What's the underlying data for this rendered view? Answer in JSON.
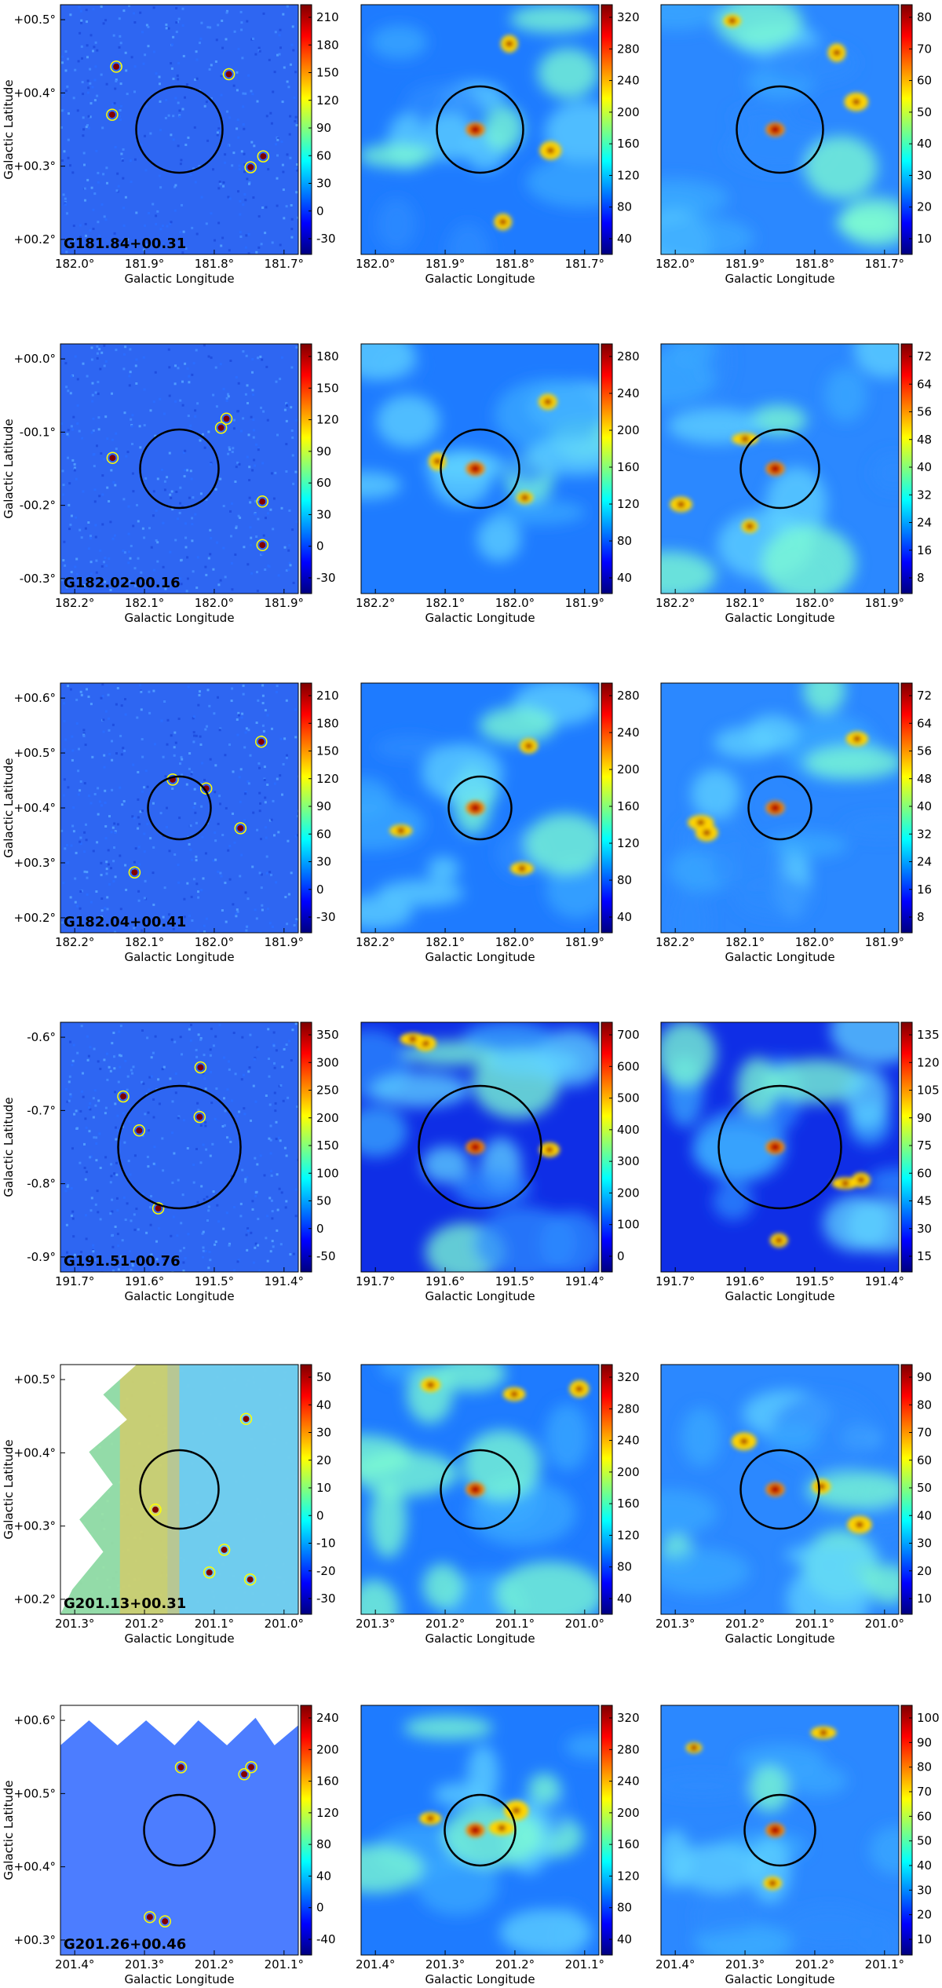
{
  "figure": {
    "x_axis_label": "Galactic Longitude",
    "y_axis_label": "Galactic Latitude",
    "colormap": [
      "#00007f",
      "#0000ff",
      "#007fff",
      "#00ffff",
      "#7fff7f",
      "#ffff00",
      "#ff7f00",
      "#ff0000",
      "#7f0000"
    ],
    "rows": [
      {
        "source": "G181.84+00.31",
        "lon_ticks": [
          "182.0°",
          "181.9°",
          "181.8°",
          "181.7°"
        ],
        "lat_ticks": [
          "+00.5°",
          "+00.4°",
          "+00.3°",
          "+00.2°"
        ],
        "panels": [
          {
            "colorbar_ticks": [
              "210",
              "180",
              "150",
              "120",
              "90",
              "60",
              "30",
              "0",
              "-30"
            ]
          },
          {
            "colorbar_ticks": [
              "320",
              "280",
              "240",
              "200",
              "160",
              "120",
              "80",
              "40"
            ]
          },
          {
            "colorbar_ticks": [
              "80",
              "70",
              "60",
              "50",
              "40",
              "30",
              "20",
              "10"
            ]
          }
        ]
      },
      {
        "source": "G182.02-00.16",
        "lon_ticks": [
          "182.2°",
          "182.1°",
          "182.0°",
          "181.9°"
        ],
        "lat_ticks": [
          "+00.0°",
          "-00.1°",
          "-00.2°",
          "-00.3°"
        ],
        "panels": [
          {
            "colorbar_ticks": [
              "180",
              "150",
              "120",
              "90",
              "60",
              "30",
              "0",
              "-30"
            ]
          },
          {
            "colorbar_ticks": [
              "280",
              "240",
              "200",
              "160",
              "120",
              "80",
              "40"
            ]
          },
          {
            "colorbar_ticks": [
              "72",
              "64",
              "56",
              "48",
              "40",
              "32",
              "24",
              "16",
              "8"
            ]
          }
        ]
      },
      {
        "source": "G182.04+00.41",
        "lon_ticks": [
          "182.2°",
          "182.1°",
          "182.0°",
          "181.9°"
        ],
        "lat_ticks": [
          "+00.6°",
          "+00.5°",
          "+00.4°",
          "+00.3°",
          "+00.2°"
        ],
        "panels": [
          {
            "colorbar_ticks": [
              "210",
              "180",
              "150",
              "120",
              "90",
              "60",
              "30",
              "0",
              "-30"
            ]
          },
          {
            "colorbar_ticks": [
              "280",
              "240",
              "200",
              "160",
              "120",
              "80",
              "40"
            ]
          },
          {
            "colorbar_ticks": [
              "72",
              "64",
              "56",
              "48",
              "40",
              "32",
              "24",
              "16",
              "8"
            ]
          }
        ]
      },
      {
        "source": "G191.51-00.76",
        "lon_ticks": [
          "191.7°",
          "191.6°",
          "191.5°",
          "191.4°"
        ],
        "lat_ticks": [
          "-0.6°",
          "-0.7°",
          "-0.8°",
          "-0.9°"
        ],
        "panels": [
          {
            "colorbar_ticks": [
              "350",
              "300",
              "250",
              "200",
              "150",
              "100",
              "50",
              "0",
              "-50"
            ]
          },
          {
            "colorbar_ticks": [
              "700",
              "600",
              "500",
              "400",
              "300",
              "200",
              "100",
              "0"
            ]
          },
          {
            "colorbar_ticks": [
              "135",
              "120",
              "105",
              "90",
              "75",
              "60",
              "45",
              "30",
              "15"
            ]
          }
        ]
      },
      {
        "source": "G201.13+00.31",
        "lon_ticks": [
          "201.3°",
          "201.2°",
          "201.1°",
          "201.0°"
        ],
        "lat_ticks": [
          "+00.5°",
          "+00.4°",
          "+00.3°",
          "+00.2°"
        ],
        "panels": [
          {
            "colorbar_ticks": [
              "50",
              "40",
              "30",
              "20",
              "10",
              "0",
              "-10",
              "-20",
              "-30"
            ]
          },
          {
            "colorbar_ticks": [
              "320",
              "280",
              "240",
              "200",
              "160",
              "120",
              "80",
              "40"
            ]
          },
          {
            "colorbar_ticks": [
              "90",
              "80",
              "70",
              "60",
              "50",
              "40",
              "30",
              "20",
              "10"
            ]
          }
        ]
      },
      {
        "source": "G201.26+00.46",
        "lon_ticks": [
          "201.4°",
          "201.3°",
          "201.2°",
          "201.1°"
        ],
        "lat_ticks": [
          "+00.6°",
          "+00.5°",
          "+00.4°",
          "+00.3°"
        ],
        "panels": [
          {
            "colorbar_ticks": [
              "240",
              "200",
              "160",
              "120",
              "80",
              "40",
              "0",
              "-40"
            ]
          },
          {
            "colorbar_ticks": [
              "320",
              "280",
              "240",
              "200",
              "160",
              "120",
              "80",
              "40"
            ]
          },
          {
            "colorbar_ticks": [
              "100",
              "90",
              "80",
              "70",
              "60",
              "50",
              "40",
              "30",
              "20",
              "10"
            ]
          }
        ]
      }
    ]
  }
}
